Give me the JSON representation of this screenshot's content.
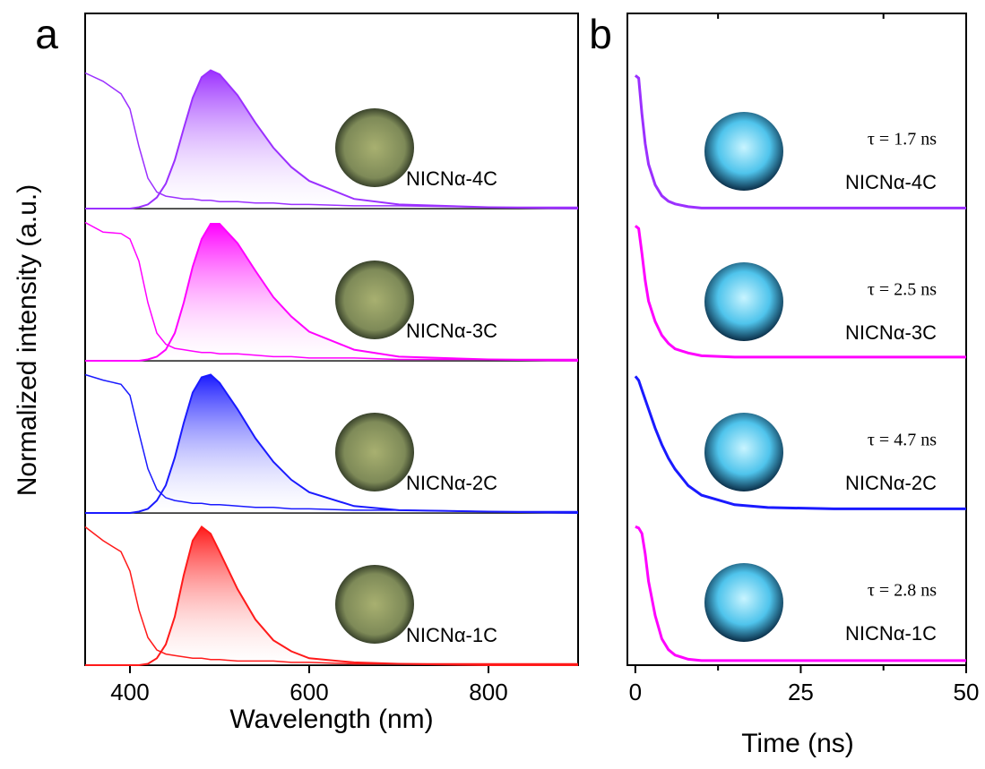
{
  "chart_data": [
    {
      "type": "spectra",
      "panel": "a",
      "x_label": "Wavelength (nm)",
      "y_label": "Normalized intensity (a.u.)",
      "x": [
        350,
        370,
        390,
        400,
        410,
        420,
        430,
        440,
        450,
        460,
        470,
        480,
        490,
        500,
        520,
        540,
        560,
        580,
        600,
        650,
        700,
        800,
        900
      ],
      "xlim": [
        350,
        900
      ],
      "xticks": [
        400,
        600,
        800
      ],
      "ylim": [
        0,
        1.1
      ],
      "series": [
        {
          "name": "NICNα-4C",
          "color": "#9b30ff",
          "absorption": [
            0.98,
            0.92,
            0.83,
            0.72,
            0.45,
            0.22,
            0.12,
            0.09,
            0.08,
            0.07,
            0.07,
            0.06,
            0.06,
            0.05,
            0.05,
            0.04,
            0.04,
            0.03,
            0.03,
            0.02,
            0.02,
            0.01,
            0.01
          ],
          "values": [
            0,
            0,
            0,
            0,
            0.01,
            0.03,
            0.08,
            0.18,
            0.35,
            0.58,
            0.8,
            0.95,
            1,
            0.97,
            0.82,
            0.62,
            0.44,
            0.3,
            0.2,
            0.07,
            0.03,
            0.01,
            0
          ]
        },
        {
          "name": "NICNα-3C",
          "color": "#ff00ff",
          "absorption": [
            1,
            0.93,
            0.92,
            0.88,
            0.72,
            0.42,
            0.2,
            0.12,
            0.09,
            0.08,
            0.07,
            0.06,
            0.06,
            0.05,
            0.05,
            0.04,
            0.03,
            0.03,
            0.02,
            0.02,
            0.01,
            0.01,
            0.01
          ],
          "values": [
            0,
            0,
            0,
            0,
            0,
            0.01,
            0.03,
            0.08,
            0.2,
            0.42,
            0.68,
            0.88,
            0.99,
            0.99,
            0.85,
            0.65,
            0.46,
            0.32,
            0.21,
            0.08,
            0.03,
            0.01,
            0
          ]
        },
        {
          "name": "NICNα-2C",
          "color": "#1a1aff",
          "absorption": [
            1,
            0.96,
            0.93,
            0.85,
            0.58,
            0.32,
            0.17,
            0.11,
            0.09,
            0.08,
            0.07,
            0.07,
            0.06,
            0.06,
            0.05,
            0.04,
            0.04,
            0.03,
            0.03,
            0.02,
            0.02,
            0.01,
            0.01
          ],
          "values": [
            0,
            0,
            0,
            0,
            0.01,
            0.03,
            0.09,
            0.2,
            0.4,
            0.65,
            0.87,
            0.98,
            1,
            0.94,
            0.75,
            0.54,
            0.37,
            0.24,
            0.15,
            0.05,
            0.02,
            0.01,
            0
          ]
        },
        {
          "name": "NICNα-1C",
          "color": "#ff1a1a",
          "absorption": [
            1,
            0.9,
            0.82,
            0.68,
            0.4,
            0.2,
            0.11,
            0.08,
            0.07,
            0.06,
            0.05,
            0.05,
            0.04,
            0.04,
            0.03,
            0.03,
            0.03,
            0.02,
            0.02,
            0.01,
            0.01,
            0.01,
            0.01
          ],
          "values": [
            0,
            0,
            0,
            0,
            0,
            0.01,
            0.05,
            0.15,
            0.35,
            0.65,
            0.9,
            1,
            0.95,
            0.82,
            0.55,
            0.33,
            0.18,
            0.1,
            0.05,
            0.02,
            0.01,
            0,
            0
          ]
        }
      ]
    },
    {
      "type": "decay",
      "panel": "b",
      "x_label": "Time (ns)",
      "x": [
        0,
        0.5,
        1,
        1.5,
        2,
        3,
        4,
        5,
        6,
        8,
        10,
        15,
        20,
        30,
        40,
        50
      ],
      "xlim": [
        -1.2,
        50
      ],
      "xticks": [
        0,
        25,
        50
      ],
      "xminorticks": [
        12.5,
        37.5
      ],
      "ylim": [
        0,
        1.1
      ],
      "series": [
        {
          "name": "NICNα-4C",
          "color": "#9b30ff",
          "annotation": "τ = 1.7 ns",
          "values": [
            1,
            0.98,
            0.72,
            0.5,
            0.35,
            0.2,
            0.12,
            0.08,
            0.06,
            0.04,
            0.03,
            0.03,
            0.03,
            0.03,
            0.03,
            0.03
          ]
        },
        {
          "name": "NICNα-3C",
          "color": "#ff00ff",
          "annotation": "τ = 2.5 ns",
          "values": [
            1,
            0.98,
            0.8,
            0.6,
            0.45,
            0.3,
            0.2,
            0.14,
            0.1,
            0.07,
            0.05,
            0.04,
            0.04,
            0.04,
            0.04,
            0.04
          ]
        },
        {
          "name": "NICNα-2C",
          "color": "#1a1aff",
          "annotation": "τ = 4.7 ns",
          "values": [
            1,
            0.97,
            0.9,
            0.83,
            0.76,
            0.62,
            0.5,
            0.4,
            0.32,
            0.2,
            0.13,
            0.06,
            0.04,
            0.03,
            0.03,
            0.03
          ]
        },
        {
          "name": "NICNα-1C",
          "color": "#ff00ff",
          "annotation": "τ = 2.8 ns",
          "values": [
            1,
            0.99,
            0.95,
            0.8,
            0.6,
            0.35,
            0.18,
            0.1,
            0.06,
            0.03,
            0.02,
            0.02,
            0.02,
            0.02,
            0.02,
            0.02
          ]
        }
      ]
    }
  ]
}
